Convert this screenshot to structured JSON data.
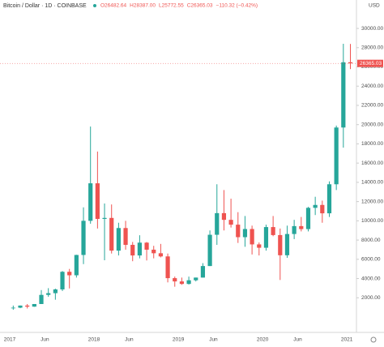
{
  "header": {
    "title": "Bitcoin / Dollar · 1D · COINBASE",
    "ohlc": [
      "O26482.64",
      "H28387.00",
      "L25772.55",
      "C26365.03",
      "−110.32 (−0.42%)"
    ]
  },
  "chart_data": {
    "type": "candlestick",
    "y_axis_label": "USD",
    "last_label": "26365.03",
    "up_color": "#26a69a",
    "down_color": "#ef5350",
    "grid": false,
    "categories": [
      "2017",
      null,
      null,
      null,
      null,
      "Jun",
      null,
      null,
      null,
      null,
      null,
      null,
      "2018",
      null,
      null,
      null,
      null,
      "Jun",
      null,
      null,
      null,
      null,
      null,
      null,
      "2019",
      null,
      null,
      null,
      null,
      "Jun",
      null,
      null,
      null,
      null,
      null,
      null,
      "2020",
      null,
      null,
      null,
      null,
      "Jun",
      null,
      null,
      null,
      null,
      null,
      null,
      "2021"
    ],
    "open": [
      963,
      970,
      1190,
      1080,
      1350,
      2300,
      2480,
      2870,
      4700,
      4340,
      6450,
      10000,
      13900,
      10200,
      10300,
      6900,
      9250,
      7500,
      6400,
      7730,
      7000,
      6630,
      6300,
      4040,
      3700,
      3440,
      3820,
      4100,
      5300,
      8550,
      10800,
      10100,
      9600,
      8300,
      9150,
      7550,
      7200,
      9350,
      8520,
      6420,
      8630,
      9450,
      9140,
      11350,
      11650,
      10780,
      13800,
      19700,
      26482.64
    ],
    "high": [
      1190,
      1200,
      1350,
      1350,
      2800,
      3000,
      2950,
      4780,
      5000,
      6470,
      11400,
      19800,
      17200,
      11800,
      11700,
      9800,
      10000,
      7800,
      8500,
      7800,
      7400,
      7600,
      6600,
      4200,
      4100,
      4200,
      4100,
      5600,
      9000,
      13800,
      13200,
      12300,
      10900,
      10500,
      9500,
      7750,
      9600,
      10500,
      9200,
      9500,
      10100,
      10400,
      11450,
      12500,
      12100,
      14100,
      19900,
      28400,
      28387
    ],
    "low": [
      760,
      920,
      890,
      1060,
      1350,
      2100,
      1800,
      2700,
      2970,
      4100,
      5500,
      9700,
      9200,
      5900,
      6600,
      6400,
      7000,
      5800,
      6100,
      5880,
      6100,
      6200,
      3600,
      3150,
      3350,
      3380,
      3700,
      4100,
      5300,
      7500,
      9000,
      9300,
      7700,
      7300,
      6500,
      6400,
      6900,
      8400,
      3850,
      6150,
      8100,
      8900,
      8900,
      10600,
      9800,
      10400,
      13200,
      17600,
      25772.55
    ],
    "close": [
      970,
      1190,
      1080,
      1350,
      2300,
      2480,
      2870,
      4700,
      4340,
      6450,
      10000,
      13900,
      10200,
      10300,
      6900,
      9250,
      7500,
      6400,
      7730,
      7000,
      6630,
      6300,
      4040,
      3700,
      3440,
      3820,
      4100,
      5300,
      8550,
      10800,
      10100,
      9600,
      8300,
      9150,
      7550,
      7200,
      9350,
      8520,
      6420,
      8630,
      9450,
      9140,
      11350,
      11650,
      10780,
      13800,
      19700,
      26480,
      26365.03
    ],
    "ylim": [
      -1600,
      31100
    ],
    "yticks": [
      {
        "value": 2000,
        "label": "2000.00"
      },
      {
        "value": 4000,
        "label": "4000.00"
      },
      {
        "value": 6000,
        "label": "6000.00"
      },
      {
        "value": 8000,
        "label": "8000.00"
      },
      {
        "value": 10000,
        "label": "10000.00"
      },
      {
        "value": 12000,
        "label": "12000.00"
      },
      {
        "value": 14000,
        "label": "14000.00"
      },
      {
        "value": 16000,
        "label": "16000.00"
      },
      {
        "value": 18000,
        "label": "18000.00"
      },
      {
        "value": 20000,
        "label": "20000.00"
      },
      {
        "value": 22000,
        "label": "22000.00"
      },
      {
        "value": 24000,
        "label": "24000.00"
      },
      {
        "value": 26000,
        "label": "26000.00"
      },
      {
        "value": 28000,
        "label": "28000.00"
      },
      {
        "value": 30000,
        "label": "30000.00"
      }
    ]
  }
}
